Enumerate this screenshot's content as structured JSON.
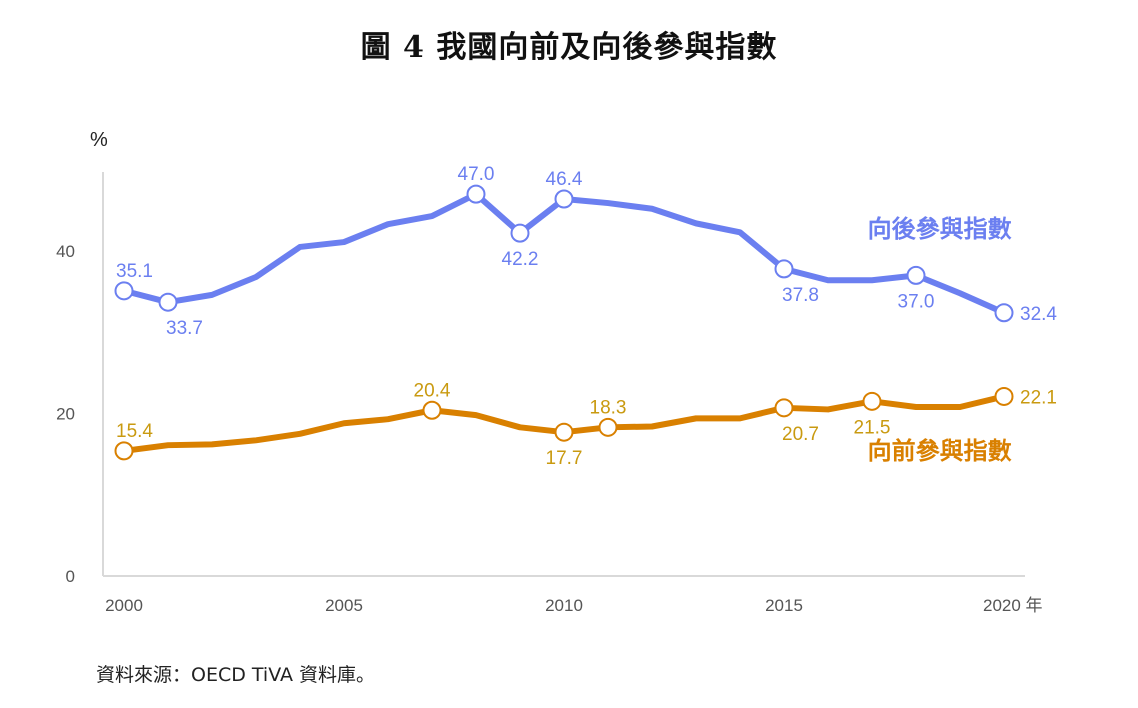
{
  "title": "圖 4  我國向前及向後參與指數",
  "source_note": "資料來源：OECD TiVA 資料庫。",
  "chart_data": {
    "type": "line",
    "title": "圖 4  我國向前及向後參與指數",
    "xlabel": "年",
    "ylabel": "%",
    "x": [
      2000,
      2001,
      2002,
      2003,
      2004,
      2005,
      2006,
      2007,
      2008,
      2009,
      2010,
      2011,
      2012,
      2013,
      2014,
      2015,
      2016,
      2017,
      2018,
      2019,
      2020
    ],
    "xticks": [
      2000,
      2005,
      2010,
      2015,
      2020
    ],
    "xtick_labels": [
      "2000",
      "2005",
      "2010",
      "2015",
      "2020 年"
    ],
    "yticks": [
      0,
      20,
      40
    ],
    "ylim": [
      0,
      49
    ],
    "xlim": [
      1999.5,
      2020.5
    ],
    "grid": false,
    "legend": "inline labels (right side)",
    "series": [
      {
        "name": "向後參與指數",
        "color": "#6b7ff0",
        "label_color": "#6b7ff0",
        "values": [
          35.1,
          33.7,
          34.6,
          36.8,
          40.5,
          41.1,
          43.3,
          44.3,
          47.0,
          42.2,
          46.4,
          45.9,
          45.2,
          43.4,
          42.3,
          37.8,
          36.4,
          36.4,
          37.0,
          34.8,
          32.4
        ],
        "marked": [
          2000,
          2001,
          2008,
          2009,
          2010,
          2015,
          2018,
          2020
        ],
        "data_labels": [
          {
            "x": 2000,
            "text": "35.1",
            "pos": "above"
          },
          {
            "x": 2001,
            "text": "33.7",
            "pos": "below"
          },
          {
            "x": 2008,
            "text": "47.0",
            "pos": "above"
          },
          {
            "x": 2009,
            "text": "42.2",
            "pos": "below"
          },
          {
            "x": 2010,
            "text": "46.4",
            "pos": "above"
          },
          {
            "x": 2015,
            "text": "37.8",
            "pos": "below"
          },
          {
            "x": 2018,
            "text": "37.0",
            "pos": "below"
          },
          {
            "x": 2020,
            "text": "32.4",
            "pos": "right"
          }
        ],
        "series_label": {
          "text": "向後參與指數",
          "x": 2016.9,
          "y": 41.7
        }
      },
      {
        "name": "向前參與指數",
        "color": "#d98000",
        "label_color": "#c99a10",
        "values": [
          15.4,
          16.1,
          16.2,
          16.7,
          17.5,
          18.8,
          19.3,
          20.4,
          19.8,
          18.3,
          17.7,
          18.3,
          18.4,
          19.4,
          19.4,
          20.7,
          20.5,
          21.5,
          20.8,
          20.8,
          22.1
        ],
        "marked": [
          2000,
          2007,
          2010,
          2011,
          2015,
          2017,
          2020
        ],
        "data_labels": [
          {
            "x": 2000,
            "text": "15.4",
            "pos": "above"
          },
          {
            "x": 2007,
            "text": "20.4",
            "pos": "above"
          },
          {
            "x": 2010,
            "text": "17.7",
            "pos": "below"
          },
          {
            "x": 2011,
            "text": "18.3",
            "pos": "above"
          },
          {
            "x": 2015,
            "text": "20.7",
            "pos": "below"
          },
          {
            "x": 2017,
            "text": "21.5",
            "pos": "below"
          },
          {
            "x": 2020,
            "text": "22.1",
            "pos": "right"
          }
        ],
        "series_label": {
          "text": "向前參與指數",
          "x": 2016.9,
          "y": 14.4
        }
      }
    ]
  }
}
